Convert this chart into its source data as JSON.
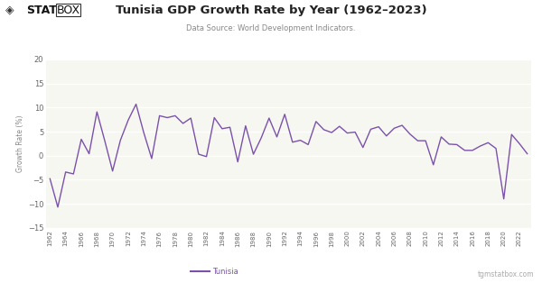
{
  "title": "Tunisia GDP Growth Rate by Year (1962–2023)",
  "subtitle": "Data Source: World Development Indicators.",
  "ylabel": "Growth Rate (%)",
  "footer_left": "— Tunisia",
  "footer_right": "tgmstatbox.com",
  "line_color": "#7B52AB",
  "bg_color": "#ffffff",
  "plot_bg_color": "#f7f7f2",
  "grid_color": "#e0e0e0",
  "ylim": [
    -15,
    20
  ],
  "yticks": [
    -15,
    -10,
    -5,
    0,
    5,
    10,
    15,
    20
  ],
  "years": [
    1962,
    1963,
    1964,
    1965,
    1966,
    1967,
    1968,
    1969,
    1970,
    1971,
    1972,
    1973,
    1974,
    1975,
    1976,
    1977,
    1978,
    1979,
    1980,
    1981,
    1982,
    1983,
    1984,
    1985,
    1986,
    1987,
    1988,
    1989,
    1990,
    1991,
    1992,
    1993,
    1994,
    1995,
    1996,
    1997,
    1998,
    1999,
    2000,
    2001,
    2002,
    2003,
    2004,
    2005,
    2006,
    2007,
    2008,
    2009,
    2010,
    2011,
    2012,
    2013,
    2014,
    2015,
    2016,
    2017,
    2018,
    2019,
    2020,
    2021,
    2022,
    2023
  ],
  "values": [
    -4.8,
    -10.7,
    -3.4,
    -3.8,
    3.4,
    0.4,
    9.1,
    3.1,
    -3.2,
    3.2,
    7.4,
    10.7,
    4.7,
    -0.6,
    8.3,
    7.9,
    8.3,
    6.7,
    7.8,
    0.3,
    -0.2,
    7.9,
    5.6,
    5.9,
    -1.3,
    6.2,
    0.3,
    3.7,
    7.8,
    3.9,
    8.6,
    2.8,
    3.2,
    2.3,
    7.1,
    5.4,
    4.8,
    6.1,
    4.7,
    4.9,
    1.7,
    5.5,
    6.0,
    4.1,
    5.7,
    6.3,
    4.5,
    3.1,
    3.1,
    -1.9,
    3.9,
    2.4,
    2.3,
    1.1,
    1.1,
    2.0,
    2.7,
    1.5,
    -9.0,
    4.4,
    2.5,
    0.4
  ]
}
